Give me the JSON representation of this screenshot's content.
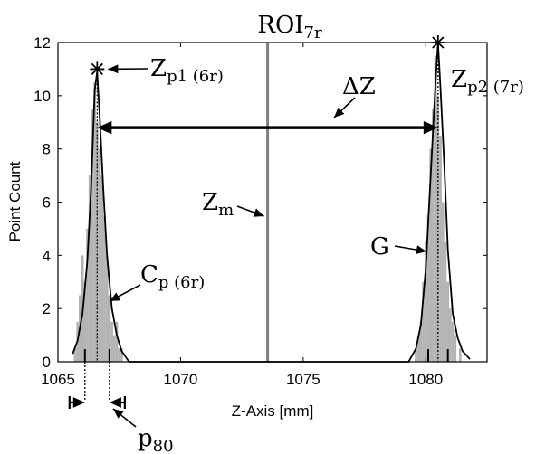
{
  "chart_data": {
    "type": "bar",
    "title": {
      "base": "ROI",
      "sub": "7r"
    },
    "xlabel": "Z-Axis [mm]",
    "ylabel": "Point Count",
    "xlim": [
      1065,
      1082.5
    ],
    "ylim": [
      0,
      12
    ],
    "xticks": [
      1065,
      1070,
      1075,
      1080
    ],
    "yticks": [
      0,
      2,
      4,
      6,
      8,
      10,
      12
    ],
    "grid": false,
    "histogram": {
      "color": "#b3b3b3",
      "bin_width": 0.1,
      "bins": [
        {
          "x": 1065.7,
          "y": 0.5
        },
        {
          "x": 1065.8,
          "y": 1.5
        },
        {
          "x": 1065.9,
          "y": 2.5
        },
        {
          "x": 1066.0,
          "y": 4.0
        },
        {
          "x": 1066.1,
          "y": 3.0
        },
        {
          "x": 1066.2,
          "y": 5.0
        },
        {
          "x": 1066.3,
          "y": 7.0
        },
        {
          "x": 1066.4,
          "y": 9.5
        },
        {
          "x": 1066.5,
          "y": 10.5
        },
        {
          "x": 1066.6,
          "y": 9.0
        },
        {
          "x": 1066.7,
          "y": 8.0
        },
        {
          "x": 1066.8,
          "y": 7.0
        },
        {
          "x": 1066.9,
          "y": 5.5
        },
        {
          "x": 1067.0,
          "y": 4.0
        },
        {
          "x": 1067.1,
          "y": 2.5
        },
        {
          "x": 1067.2,
          "y": 1.5
        },
        {
          "x": 1067.3,
          "y": 1.0
        },
        {
          "x": 1067.4,
          "y": 1.5
        },
        {
          "x": 1067.5,
          "y": 0.5
        },
        {
          "x": 1067.6,
          "y": 0.5
        },
        {
          "x": 1079.6,
          "y": 0.5
        },
        {
          "x": 1079.7,
          "y": 1.0
        },
        {
          "x": 1079.8,
          "y": 1.5
        },
        {
          "x": 1079.9,
          "y": 3.0
        },
        {
          "x": 1080.0,
          "y": 4.5
        },
        {
          "x": 1080.1,
          "y": 5.5
        },
        {
          "x": 1080.2,
          "y": 8.0
        },
        {
          "x": 1080.3,
          "y": 9.5
        },
        {
          "x": 1080.4,
          "y": 11.5
        },
        {
          "x": 1080.5,
          "y": 10.0
        },
        {
          "x": 1080.6,
          "y": 8.5
        },
        {
          "x": 1080.7,
          "y": 6.0
        },
        {
          "x": 1080.8,
          "y": 4.5
        },
        {
          "x": 1080.9,
          "y": 3.0
        },
        {
          "x": 1081.0,
          "y": 2.0
        },
        {
          "x": 1081.1,
          "y": 1.5
        },
        {
          "x": 1081.2,
          "y": 1.0
        },
        {
          "x": 1081.4,
          "y": 0.5
        }
      ]
    },
    "curve": {
      "color": "#000000",
      "points": [
        [
          1065.6,
          0.3
        ],
        [
          1065.8,
          0.8
        ],
        [
          1066.0,
          1.8
        ],
        [
          1066.2,
          3.8
        ],
        [
          1066.35,
          6.5
        ],
        [
          1066.5,
          10.2
        ],
        [
          1066.6,
          10.9
        ],
        [
          1066.7,
          9.3
        ],
        [
          1066.85,
          6.5
        ],
        [
          1067.0,
          4.0
        ],
        [
          1067.2,
          2.0
        ],
        [
          1067.4,
          1.0
        ],
        [
          1067.6,
          0.4
        ],
        [
          1067.9,
          0.0
        ],
        [
          1079.3,
          0.0
        ],
        [
          1079.6,
          0.5
        ],
        [
          1079.8,
          1.4
        ],
        [
          1080.0,
          3.5
        ],
        [
          1080.2,
          7.0
        ],
        [
          1080.4,
          10.5
        ],
        [
          1080.5,
          12.0
        ],
        [
          1080.6,
          10.3
        ],
        [
          1080.75,
          7.5
        ],
        [
          1080.9,
          4.2
        ],
        [
          1081.1,
          1.8
        ],
        [
          1081.3,
          0.9
        ],
        [
          1081.5,
          0.4
        ],
        [
          1081.8,
          0.1
        ]
      ]
    },
    "peaks": [
      {
        "x": 1066.6,
        "y": 11.0,
        "label": {
          "base": "Z",
          "sub": "p1 (6r)"
        }
      },
      {
        "x": 1080.5,
        "y": 12.0,
        "label": {
          "base": "Z",
          "sub": "p2 (7r)"
        }
      }
    ],
    "mean_line": {
      "x": 1073.55,
      "color": "#808080",
      "label": {
        "base": "Z",
        "sub": "m"
      }
    },
    "delta": {
      "from": 1066.6,
      "to": 1080.5,
      "y": 8.8,
      "label": "ΔZ"
    },
    "curve_label": {
      "base": "C",
      "sub": "p (6r)"
    },
    "gaussian_label": "G",
    "p80": {
      "peak1": [
        1066.1,
        1067.1
      ],
      "peak2": [
        1080.1,
        1080.9
      ],
      "label": {
        "base": "p",
        "sub": "80"
      }
    }
  }
}
